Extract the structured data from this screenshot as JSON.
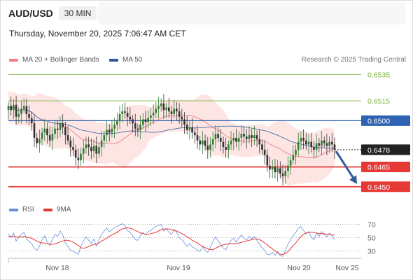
{
  "header": {
    "symbol": "AUD/USD",
    "timeframe": "30 MIN",
    "timestamp": "Thursday, November 20, 2025 7:06:47 AM CET",
    "credit": "Research © 2025 Trading Central"
  },
  "colors": {
    "candle_up": "#2e7d32",
    "candle_down": "#333333",
    "bollinger_fill": "#fde0df",
    "ma20": "#f08080",
    "ma50": "#4a6fa5",
    "resistance": "#7cb342",
    "pivot": "#2f62b3",
    "support": "#e53935",
    "arrow": "#2f5d9c",
    "rsi": "#6a8fd8",
    "rsi_ma": "#e53935"
  },
  "chart_data": [
    {
      "type": "candlestick",
      "title": "AUD/USD 30 MIN",
      "legend": [
        "MA 20 + Bollinger Bands",
        "MA 50"
      ],
      "legend_placement": "top-left",
      "ylim": [
        0.6443,
        0.6541
      ],
      "x_ticks": [
        "Nov 18",
        "Nov 19",
        "Nov 20",
        "Nov 25"
      ],
      "levels": [
        {
          "value": 0.6535,
          "label": "0.6535",
          "kind": "resistance"
        },
        {
          "value": 0.6515,
          "label": "0.6515",
          "kind": "resistance"
        },
        {
          "value": 0.65,
          "label": "0.6500",
          "kind": "pivot"
        },
        {
          "value": 0.6478,
          "label": "0.6478",
          "kind": "last"
        },
        {
          "value": 0.6465,
          "label": "0.6465",
          "kind": "support"
        },
        {
          "value": 0.645,
          "label": "0.6450",
          "kind": "support"
        }
      ],
      "close": [
        0.6511,
        0.6508,
        0.6512,
        0.6503,
        0.6505,
        0.6509,
        0.6511,
        0.6505,
        0.6502,
        0.6498,
        0.6487,
        0.6483,
        0.6486,
        0.6491,
        0.6494,
        0.6489,
        0.6485,
        0.649,
        0.6494,
        0.6493,
        0.6498,
        0.6495,
        0.6489,
        0.6485,
        0.648,
        0.6478,
        0.6472,
        0.647,
        0.6475,
        0.6479,
        0.6482,
        0.648,
        0.6477,
        0.6481,
        0.6475,
        0.648,
        0.6485,
        0.6489,
        0.6493,
        0.6491,
        0.6494,
        0.6497,
        0.65,
        0.6505,
        0.6507,
        0.6506,
        0.6503,
        0.6501,
        0.6498,
        0.6494,
        0.6493,
        0.6497,
        0.6501,
        0.6499,
        0.6502,
        0.6504,
        0.6506,
        0.6509,
        0.6511,
        0.6513,
        0.6508,
        0.651,
        0.6507,
        0.6505,
        0.6509,
        0.6507,
        0.6503,
        0.6501,
        0.6497,
        0.6493,
        0.6495,
        0.6491,
        0.6489,
        0.6485,
        0.6482,
        0.6485,
        0.6481,
        0.6478,
        0.6482,
        0.6486,
        0.649,
        0.6487,
        0.6484,
        0.648,
        0.6478,
        0.6482,
        0.6485,
        0.6487,
        0.6484,
        0.6487,
        0.649,
        0.6488,
        0.6486,
        0.6489,
        0.6487,
        0.6489,
        0.6486,
        0.6482,
        0.6478,
        0.6474,
        0.6466,
        0.6463,
        0.6465,
        0.6461,
        0.6464,
        0.646,
        0.6458,
        0.6462,
        0.6466,
        0.647,
        0.6474,
        0.6478,
        0.6484,
        0.6487,
        0.6485,
        0.6482,
        0.6484,
        0.648,
        0.6478,
        0.6483,
        0.6481,
        0.6485,
        0.6483,
        0.6481,
        0.6484,
        0.6482,
        0.6478
      ],
      "projection": {
        "from": 0.6478,
        "to": 0.645
      }
    },
    {
      "type": "line",
      "title": "RSI",
      "legend": [
        "RSI",
        "9MA"
      ],
      "legend_placement": "top-left",
      "ylim": [
        20,
        80
      ],
      "y_ticks": [
        70,
        50,
        30
      ],
      "series": [
        {
          "name": "RSI",
          "values": [
            56,
            50,
            57,
            45,
            51,
            55,
            58,
            48,
            44,
            41,
            34,
            31,
            37,
            47,
            53,
            44,
            38,
            48,
            55,
            52,
            60,
            54,
            42,
            37,
            31,
            30,
            27,
            25,
            37,
            45,
            51,
            46,
            41,
            48,
            37,
            47,
            55,
            60,
            64,
            59,
            62,
            65,
            67,
            69,
            71,
            68,
            61,
            58,
            53,
            47,
            46,
            53,
            58,
            54,
            59,
            61,
            64,
            67,
            69,
            70,
            60,
            64,
            58,
            55,
            62,
            58,
            50,
            47,
            42,
            37,
            41,
            36,
            34,
            31,
            29,
            37,
            31,
            28,
            36,
            44,
            51,
            45,
            40,
            34,
            32,
            40,
            46,
            49,
            43,
            49,
            54,
            49,
            46,
            52,
            48,
            52,
            46,
            40,
            35,
            31,
            25,
            24,
            28,
            23,
            29,
            23,
            22,
            31,
            40,
            47,
            53,
            58,
            64,
            67,
            61,
            56,
            59,
            51,
            47,
            57,
            52,
            59,
            55,
            51,
            57,
            53,
            47
          ]
        },
        {
          "name": "9MA",
          "values": [
            52,
            52,
            52,
            51,
            51,
            51,
            52,
            51,
            50,
            49,
            47,
            45,
            43,
            42,
            42,
            41,
            40,
            40,
            41,
            42,
            44,
            45,
            46,
            46,
            45,
            43,
            41,
            38,
            35,
            34,
            35,
            37,
            38,
            40,
            40,
            42,
            45,
            47,
            49,
            52,
            54,
            56,
            58,
            61,
            63,
            64,
            65,
            64,
            63,
            61,
            59,
            57,
            56,
            55,
            55,
            56,
            57,
            58,
            60,
            62,
            63,
            63,
            63,
            62,
            61,
            60,
            58,
            56,
            54,
            51,
            49,
            46,
            44,
            42,
            39,
            37,
            35,
            33,
            32,
            32,
            34,
            36,
            38,
            39,
            40,
            41,
            41,
            41,
            41,
            42,
            43,
            44,
            45,
            46,
            47,
            48,
            48,
            47,
            45,
            42,
            39,
            36,
            33,
            30,
            27,
            25,
            25,
            26,
            29,
            33,
            38,
            42,
            47,
            52,
            55,
            57,
            58,
            58,
            58,
            57,
            56,
            56,
            56,
            55,
            55,
            54,
            54
          ]
        }
      ]
    }
  ]
}
